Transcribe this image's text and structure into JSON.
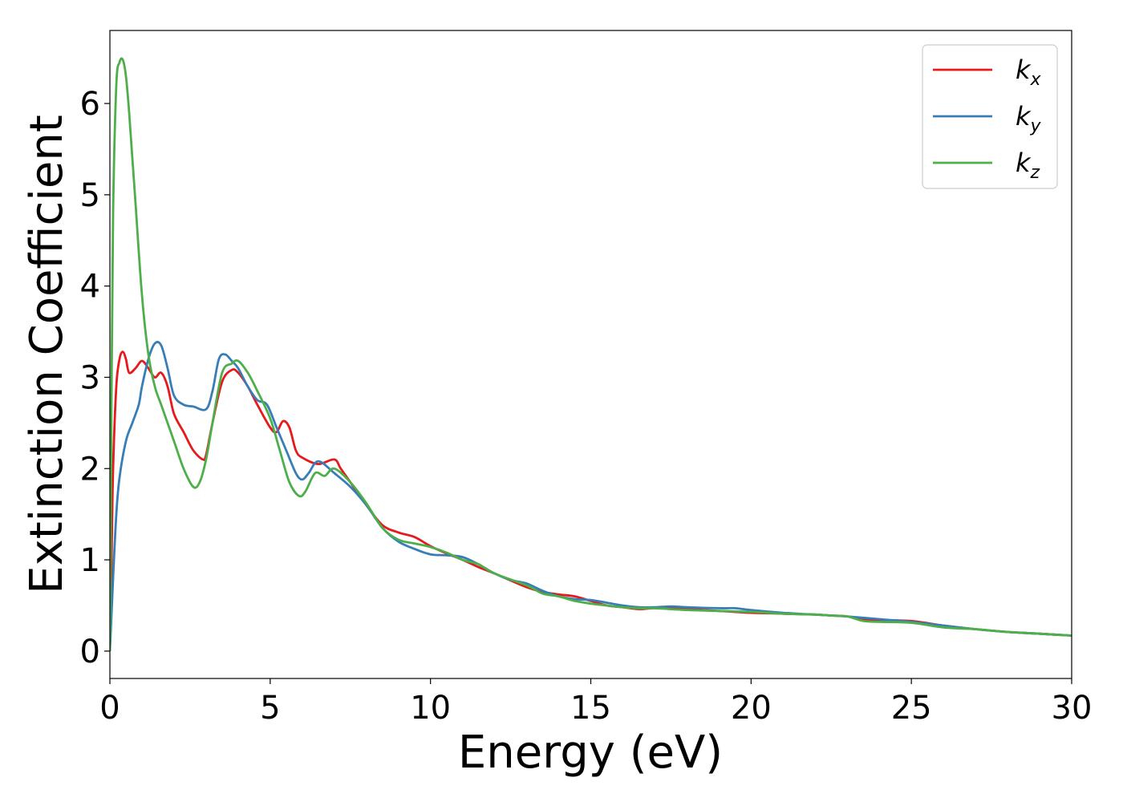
{
  "chart_data": {
    "type": "line",
    "title": "",
    "xlabel": "Energy (eV)",
    "ylabel": "Extinction Coefficient",
    "xlim": [
      0,
      30
    ],
    "ylim": [
      -0.3,
      6.8
    ],
    "xticks": [
      0,
      5,
      10,
      15,
      20,
      25,
      30
    ],
    "yticks": [
      0,
      1,
      2,
      3,
      4,
      5,
      6
    ],
    "grid": false,
    "legend_position": "top-right",
    "series": [
      {
        "name": "k",
        "subscript": "x",
        "color": "#e41a1c",
        "x": [
          0,
          0.05,
          0.1,
          0.2,
          0.3,
          0.4,
          0.5,
          0.6,
          0.8,
          1.0,
          1.2,
          1.4,
          1.6,
          1.8,
          2.0,
          2.3,
          2.6,
          2.9,
          3.0,
          3.2,
          3.5,
          3.8,
          4.0,
          4.3,
          4.6,
          5.0,
          5.2,
          5.4,
          5.6,
          5.8,
          6.0,
          6.5,
          7.0,
          7.2,
          7.5,
          8.0,
          8.5,
          9.0,
          9.5,
          10,
          10.5,
          11,
          11.5,
          12,
          13,
          13.5,
          14,
          14.5,
          15,
          15.5,
          16,
          16.5,
          17,
          18,
          19,
          20,
          21,
          22,
          22.5,
          23,
          23.5,
          24,
          25,
          26,
          27,
          28,
          29,
          30
        ],
        "y": [
          0,
          1.0,
          2.0,
          2.9,
          3.2,
          3.28,
          3.2,
          3.05,
          3.1,
          3.18,
          3.1,
          3.0,
          3.05,
          2.9,
          2.6,
          2.4,
          2.2,
          2.1,
          2.15,
          2.5,
          2.95,
          3.08,
          3.05,
          2.9,
          2.7,
          2.45,
          2.4,
          2.52,
          2.45,
          2.2,
          2.12,
          2.05,
          2.1,
          2.0,
          1.85,
          1.6,
          1.38,
          1.3,
          1.25,
          1.15,
          1.07,
          1.0,
          0.92,
          0.85,
          0.7,
          0.65,
          0.62,
          0.6,
          0.55,
          0.5,
          0.48,
          0.46,
          0.47,
          0.46,
          0.44,
          0.42,
          0.41,
          0.4,
          0.39,
          0.38,
          0.35,
          0.34,
          0.33,
          0.28,
          0.24,
          0.21,
          0.19,
          0.17
        ]
      },
      {
        "name": "k",
        "subscript": "y",
        "color": "#377eb8",
        "x": [
          0,
          0.1,
          0.2,
          0.3,
          0.5,
          0.7,
          0.9,
          1.0,
          1.2,
          1.4,
          1.6,
          1.8,
          2.0,
          2.3,
          2.6,
          3.0,
          3.2,
          3.4,
          3.6,
          3.8,
          4.0,
          4.3,
          4.6,
          4.9,
          5.2,
          5.5,
          5.8,
          6.0,
          6.2,
          6.5,
          7.0,
          7.5,
          8.0,
          8.5,
          9.0,
          9.5,
          10,
          10.5,
          11,
          11.5,
          12,
          12.5,
          13,
          13.5,
          14,
          14.5,
          15,
          15.5,
          16,
          16.5,
          17,
          17.5,
          18,
          19,
          19.5,
          20,
          21,
          22,
          22.5,
          23,
          24,
          25,
          26,
          27,
          28,
          29,
          30
        ],
        "y": [
          0,
          0.8,
          1.5,
          1.9,
          2.3,
          2.5,
          2.7,
          2.9,
          3.2,
          3.37,
          3.35,
          3.1,
          2.8,
          2.7,
          2.68,
          2.65,
          2.85,
          3.2,
          3.25,
          3.18,
          3.1,
          2.9,
          2.75,
          2.7,
          2.45,
          2.2,
          1.95,
          1.88,
          1.95,
          2.08,
          1.95,
          1.8,
          1.6,
          1.35,
          1.2,
          1.12,
          1.06,
          1.05,
          1.03,
          0.95,
          0.85,
          0.78,
          0.74,
          0.66,
          0.6,
          0.57,
          0.56,
          0.53,
          0.5,
          0.48,
          0.48,
          0.49,
          0.48,
          0.47,
          0.47,
          0.45,
          0.42,
          0.4,
          0.39,
          0.38,
          0.35,
          0.32,
          0.28,
          0.24,
          0.21,
          0.19,
          0.17
        ]
      },
      {
        "name": "k",
        "subscript": "z",
        "color": "#4daf4a",
        "x": [
          0,
          0.05,
          0.1,
          0.2,
          0.3,
          0.4,
          0.5,
          0.6,
          0.8,
          1.0,
          1.2,
          1.4,
          1.6,
          1.8,
          2.0,
          2.3,
          2.6,
          2.8,
          3.0,
          3.2,
          3.5,
          3.8,
          4.0,
          4.3,
          4.6,
          5.0,
          5.3,
          5.6,
          5.9,
          6.1,
          6.4,
          6.7,
          7.0,
          7.5,
          8.0,
          8.5,
          9.0,
          9.5,
          10,
          10.5,
          11,
          11.5,
          12,
          13,
          13.5,
          14,
          14.5,
          15,
          15.5,
          16,
          16.5,
          17,
          18,
          19,
          20,
          21,
          22,
          22.5,
          23,
          23.5,
          24,
          25,
          26,
          27,
          28,
          29,
          30
        ],
        "y": [
          0,
          2.8,
          4.8,
          6.2,
          6.45,
          6.48,
          6.3,
          5.9,
          4.9,
          3.9,
          3.25,
          2.9,
          2.7,
          2.5,
          2.3,
          2.0,
          1.8,
          1.85,
          2.1,
          2.5,
          3.05,
          3.15,
          3.18,
          3.05,
          2.85,
          2.55,
          2.2,
          1.85,
          1.7,
          1.75,
          1.95,
          1.92,
          2.0,
          1.85,
          1.62,
          1.35,
          1.22,
          1.18,
          1.14,
          1.08,
          1.0,
          0.95,
          0.85,
          0.72,
          0.63,
          0.6,
          0.55,
          0.52,
          0.5,
          0.48,
          0.47,
          0.47,
          0.45,
          0.44,
          0.43,
          0.41,
          0.4,
          0.39,
          0.38,
          0.33,
          0.32,
          0.31,
          0.26,
          0.24,
          0.21,
          0.19,
          0.17
        ]
      }
    ]
  }
}
